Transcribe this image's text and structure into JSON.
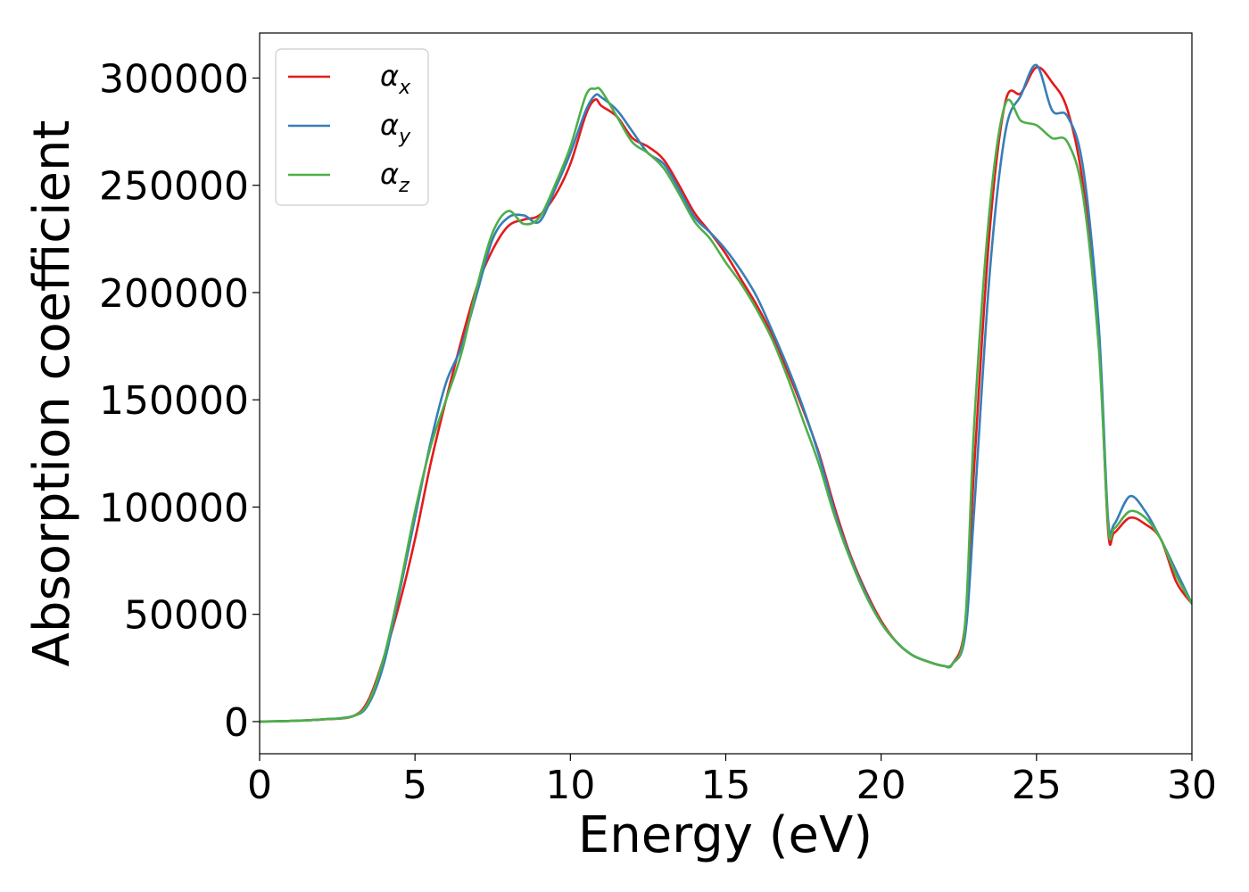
{
  "chart_data": {
    "type": "line",
    "xlabel": "Energy (eV)",
    "ylabel": "Absorption coefficient",
    "xlim": [
      0,
      30
    ],
    "ylim": [
      -15000,
      321000
    ],
    "xticks": [
      0,
      5,
      10,
      15,
      20,
      25,
      30
    ],
    "xtick_labels": [
      "0",
      "5",
      "10",
      "15",
      "20",
      "25",
      "30"
    ],
    "yticks": [
      0,
      50000,
      100000,
      150000,
      200000,
      250000,
      300000
    ],
    "ytick_labels": [
      "0",
      "50000",
      "100000",
      "150000",
      "200000",
      "250000",
      "300000"
    ],
    "grid": false,
    "legend_position": "top-left",
    "series": [
      {
        "name": "α_x",
        "symbol": "α",
        "subscript": "x",
        "color": "#e41a1c",
        "x": [
          0,
          1,
          2,
          3,
          3.5,
          4,
          4.5,
          5,
          5.5,
          6,
          6.5,
          7,
          7.5,
          8,
          8.5,
          9,
          9.5,
          10,
          10.5,
          10.8,
          11,
          11.5,
          12,
          12.5,
          13,
          13.5,
          14,
          14.5,
          15,
          15.5,
          16,
          16.5,
          17,
          17.5,
          18,
          18.5,
          19,
          19.5,
          20,
          20.5,
          21,
          21.5,
          22,
          22.3,
          22.7,
          23,
          23.5,
          24,
          24.5,
          25,
          25.5,
          26,
          26.5,
          27,
          27.3,
          27.5,
          28,
          28.5,
          29,
          29.5,
          30
        ],
        "y": [
          0,
          300,
          1000,
          2500,
          10000,
          30000,
          55000,
          85000,
          120000,
          150000,
          178000,
          203000,
          220000,
          231000,
          234000,
          236000,
          245000,
          260000,
          283000,
          290000,
          287000,
          282000,
          272000,
          268000,
          262000,
          250000,
          237000,
          228000,
          218000,
          206000,
          194000,
          180000,
          163000,
          145000,
          125000,
          100000,
          78000,
          61000,
          47000,
          37000,
          31000,
          28000,
          26000,
          27000,
          45000,
          120000,
          230000,
          289000,
          293000,
          305000,
          298000,
          285000,
          250000,
          180000,
          90000,
          88000,
          95000,
          92000,
          85000,
          65000,
          55000
        ]
      },
      {
        "name": "α_y",
        "symbol": "α",
        "subscript": "y",
        "color": "#377eb8",
        "x": [
          0,
          1,
          2,
          3,
          3.5,
          4,
          4.5,
          5,
          5.5,
          6,
          6.5,
          7,
          7.5,
          8,
          8.5,
          9,
          9.5,
          10,
          10.5,
          10.8,
          11,
          11.5,
          12,
          12.5,
          13,
          13.5,
          14,
          14.5,
          15,
          15.5,
          16,
          16.5,
          17,
          17.5,
          18,
          18.5,
          19,
          19.5,
          20,
          20.5,
          21,
          21.5,
          22,
          22.3,
          22.7,
          23,
          23.5,
          24,
          24.5,
          25,
          25.5,
          26,
          26.5,
          27,
          27.3,
          27.5,
          28,
          28.5,
          29,
          29.5,
          30
        ],
        "y": [
          0,
          300,
          1000,
          2500,
          8000,
          27000,
          60000,
          95000,
          130000,
          158000,
          175000,
          200000,
          225000,
          235000,
          236000,
          233000,
          248000,
          265000,
          285000,
          292000,
          291000,
          285000,
          275000,
          265000,
          260000,
          248000,
          235000,
          228000,
          220000,
          210000,
          198000,
          182000,
          165000,
          146000,
          124000,
          98000,
          77000,
          60000,
          46000,
          37000,
          31000,
          28000,
          26000,
          27000,
          40000,
          100000,
          210000,
          275000,
          292000,
          306000,
          285000,
          282000,
          258000,
          185000,
          95000,
          92000,
          105000,
          98000,
          85000,
          70000,
          55000
        ]
      },
      {
        "name": "α_z",
        "symbol": "α",
        "subscript": "z",
        "color": "#4daf4a",
        "x": [
          0,
          1,
          2,
          3,
          3.5,
          4,
          4.5,
          5,
          5.5,
          6,
          6.5,
          7,
          7.5,
          8,
          8.5,
          9,
          9.5,
          10,
          10.5,
          10.8,
          11,
          11.5,
          12,
          12.5,
          13,
          13.5,
          14,
          14.5,
          15,
          15.5,
          16,
          16.5,
          17,
          17.5,
          18,
          18.5,
          19,
          19.5,
          20,
          20.5,
          21,
          21.5,
          22,
          22.3,
          22.7,
          23,
          23.5,
          24,
          24.5,
          25,
          25.5,
          26,
          26.5,
          27,
          27.3,
          27.5,
          28,
          28.5,
          29,
          29.5,
          30
        ],
        "y": [
          0,
          300,
          1000,
          2500,
          9000,
          30000,
          62000,
          98000,
          128000,
          150000,
          172000,
          203000,
          228000,
          238000,
          232000,
          235000,
          250000,
          268000,
          292000,
          295000,
          294000,
          282000,
          270000,
          265000,
          258000,
          246000,
          233000,
          225000,
          214000,
          204000,
          192000,
          178000,
          160000,
          140000,
          120000,
          96000,
          76000,
          59000,
          46000,
          37000,
          31000,
          28000,
          26000,
          27000,
          45000,
          140000,
          240000,
          288000,
          280000,
          278000,
          272000,
          270000,
          245000,
          175000,
          92000,
          90000,
          98000,
          95000,
          85000,
          68000,
          55000
        ]
      }
    ]
  }
}
